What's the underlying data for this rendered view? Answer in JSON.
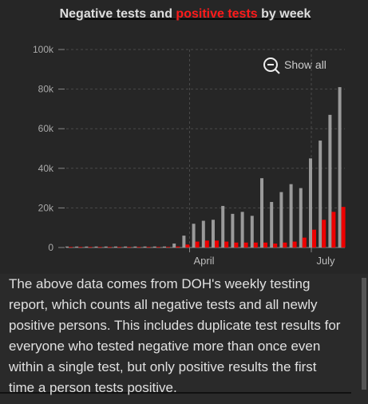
{
  "chart_data": {
    "type": "bar",
    "title_parts": [
      "Negative tests and ",
      "positive tests",
      " by week"
    ],
    "title_colors": [
      "#dddddd",
      "#ff1a1a",
      "#dddddd"
    ],
    "categories": [
      null,
      null,
      null,
      null,
      null,
      null,
      null,
      null,
      null,
      null,
      null,
      null,
      null,
      null,
      null,
      null,
      null,
      null,
      null,
      null,
      null,
      null,
      null,
      null,
      null,
      null,
      null,
      null,
      null
    ],
    "series": [
      {
        "color": "#9a9a9a",
        "values": [
          500,
          500,
          500,
          500,
          500,
          500,
          500,
          500,
          500,
          500,
          500,
          2000,
          6000,
          12000,
          13500,
          14000,
          21000,
          17000,
          18000,
          16000,
          35000,
          23000,
          28000,
          32000,
          30000,
          45000,
          54000,
          67000,
          81000
        ]
      },
      {
        "color": "#ee0000",
        "values": [
          300,
          300,
          300,
          300,
          300,
          300,
          300,
          300,
          300,
          300,
          300,
          500,
          1500,
          3000,
          3500,
          3500,
          3000,
          2500,
          2500,
          2500,
          2500,
          2000,
          2500,
          3000,
          5000,
          9000,
          14000,
          18000,
          20500
        ]
      }
    ],
    "ylim": [
      0,
      100000
    ],
    "yticks": [
      0,
      {
        "value": 20000,
        "label": "20k"
      },
      {
        "value": 40000,
        "label": "40k"
      },
      {
        "value": 60000,
        "label": "60k"
      },
      {
        "value": 80000,
        "label": "80k"
      },
      {
        "value": 100000,
        "label": "100k"
      }
    ],
    "xticks": [
      {
        "value": 12.5,
        "label": "April"
      },
      {
        "value": 25,
        "label": "July"
      }
    ],
    "grid": true,
    "button": "Show all"
  },
  "caption": "The above data comes from DOH's weekly testing report, which counts all negative tests and all newly positive persons. This includes duplicate test results for everyone who tested negative more than once even within a single test, but only positive results the first time a person tests positive."
}
